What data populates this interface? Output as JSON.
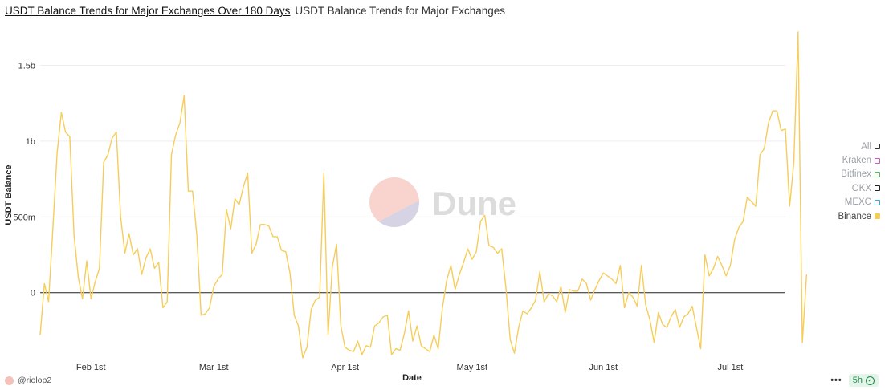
{
  "header": {
    "title": "USDT Balance Trends for Major Exchanges Over 180 Days",
    "subtitle": "USDT Balance Trends for Major Exchanges"
  },
  "legend": {
    "items": [
      {
        "label": "All",
        "color": "#333333",
        "active": false
      },
      {
        "label": "Kraken",
        "color": "#c060c0",
        "active": false
      },
      {
        "label": "Bitfinex",
        "color": "#5cb85c",
        "active": false
      },
      {
        "label": "OKX",
        "color": "#222222",
        "active": false
      },
      {
        "label": "MEXC",
        "color": "#3aa8d8",
        "active": false
      },
      {
        "label": "Binance",
        "color": "#f6cd5a",
        "active": true
      }
    ]
  },
  "watermark": {
    "text": "Dune"
  },
  "footer": {
    "author": "@riolop2",
    "refresh": "5h",
    "menu": "•••"
  },
  "chart_data": {
    "type": "line",
    "xlabel": "Date",
    "ylabel": "USDT Balance",
    "x_ticks": [
      "Feb 1st",
      "Mar 1st",
      "Apr 1st",
      "May 1st",
      "Jun 1st",
      "Jul 1st"
    ],
    "y_ticks": [
      "0",
      "500m",
      "1b",
      "1.5b"
    ],
    "ylim": [
      -0.42,
      1.72
    ],
    "x_range_days": [
      -12,
      164
    ],
    "grid": "horizontal",
    "legend_position": "right",
    "series": [
      {
        "name": "Binance",
        "color": "#f6cd5a",
        "x_start": "2024-01-20",
        "values": [
          -0.28,
          0.06,
          -0.06,
          0.42,
          0.92,
          1.19,
          1.06,
          1.03,
          0.38,
          0.1,
          -0.04,
          0.21,
          -0.04,
          0.07,
          0.16,
          0.86,
          0.91,
          1.02,
          1.06,
          0.5,
          0.26,
          0.39,
          0.25,
          0.29,
          0.12,
          0.23,
          0.29,
          0.16,
          0.2,
          -0.1,
          -0.06,
          0.91,
          1.04,
          1.12,
          1.3,
          0.67,
          0.67,
          0.38,
          -0.15,
          -0.14,
          -0.1,
          0.04,
          0.09,
          0.12,
          0.55,
          0.42,
          0.62,
          0.58,
          0.7,
          0.79,
          0.26,
          0.32,
          0.45,
          0.45,
          0.44,
          0.37,
          0.37,
          0.28,
          0.27,
          0.13,
          -0.15,
          -0.22,
          -0.43,
          -0.36,
          -0.11,
          -0.05,
          -0.03,
          0.79,
          -0.28,
          0.17,
          0.32,
          -0.22,
          -0.36,
          -0.38,
          -0.39,
          -0.32,
          -0.41,
          -0.35,
          -0.36,
          -0.22,
          -0.2,
          -0.16,
          -0.15,
          -0.41,
          -0.37,
          -0.38,
          -0.27,
          -0.12,
          -0.32,
          -0.22,
          -0.35,
          -0.37,
          -0.39,
          -0.28,
          -0.37,
          -0.1,
          0.08,
          0.18,
          0.02,
          0.12,
          0.2,
          0.29,
          0.22,
          0.27,
          0.47,
          0.51,
          0.31,
          0.3,
          0.26,
          0.29,
          0.03,
          -0.31,
          -0.4,
          -0.23,
          -0.12,
          -0.14,
          -0.1,
          -0.05,
          0.14,
          -0.06,
          -0.01,
          -0.02,
          -0.06,
          0.04,
          -0.13,
          0.02,
          0.01,
          0.01,
          0.09,
          0.06,
          -0.05,
          0.02,
          0.08,
          0.13,
          0.11,
          0.09,
          0.06,
          0.18,
          -0.1,
          0.0,
          -0.03,
          -0.09,
          0.18,
          -0.08,
          -0.18,
          -0.33,
          -0.13,
          -0.21,
          -0.23,
          -0.16,
          -0.11,
          -0.23,
          -0.16,
          -0.14,
          -0.09,
          -0.23,
          -0.37,
          0.25,
          0.11,
          0.16,
          0.24,
          0.18,
          0.11,
          0.18,
          0.35,
          0.43,
          0.47,
          0.63,
          0.6,
          0.57,
          0.91,
          0.95,
          1.12,
          1.2,
          1.2,
          1.07,
          1.08,
          0.57,
          0.86,
          1.72,
          -0.33,
          0.12
        ]
      }
    ]
  }
}
